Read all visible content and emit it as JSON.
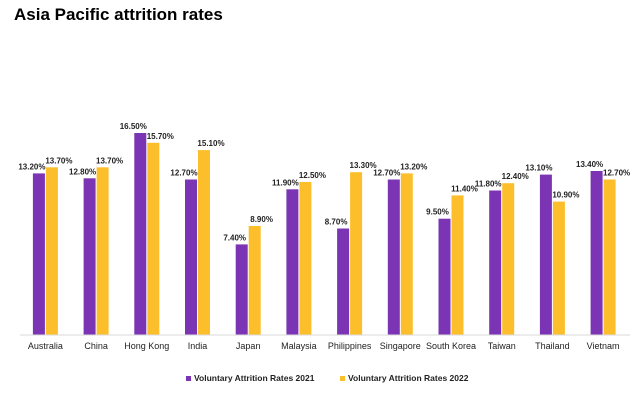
{
  "chart_data": {
    "type": "bar",
    "title": "Asia Pacific attrition rates",
    "categories": [
      "Australia",
      "China",
      "Hong Kong",
      "India",
      "Japan",
      "Malaysia",
      "Philippines",
      "Singapore",
      "South Korea",
      "Taiwan",
      "Thailand",
      "Vietnam"
    ],
    "series": [
      {
        "name": "Voluntary Attrition Rates 2021",
        "color": "#7B35B4",
        "values": [
          13.2,
          12.8,
          16.5,
          12.7,
          7.4,
          11.9,
          8.7,
          12.7,
          9.5,
          11.8,
          13.1,
          13.4
        ],
        "labels": [
          "13.20%",
          "12.80%",
          "16.50%",
          "12.70%",
          "7.40%",
          "11.90%",
          "8.70%",
          "12.70%",
          "9.50%",
          "11.80%",
          "13.10%",
          "13.40%"
        ]
      },
      {
        "name": "Voluntary Attrition Rates 2022",
        "color": "#FCBF2B",
        "values": [
          13.7,
          13.7,
          15.7,
          15.1,
          8.9,
          12.5,
          13.3,
          13.2,
          11.4,
          12.4,
          10.9,
          12.7
        ],
        "labels": [
          "13.70%",
          "13.70%",
          "15.70%",
          "15.10%",
          "8.90%",
          "12.50%",
          "13.30%",
          "13.20%",
          "11.40%",
          "12.40%",
          "10.90%",
          "12.70%"
        ]
      }
    ],
    "ylim": [
      0,
      16.5
    ],
    "grid": false,
    "legend_position": "bottom"
  }
}
